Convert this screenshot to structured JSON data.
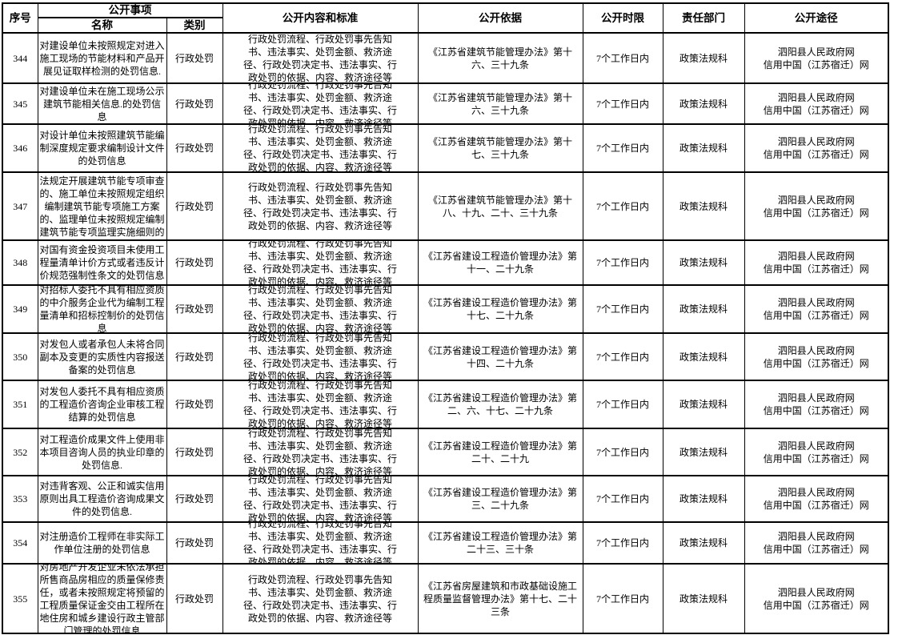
{
  "header": {
    "col_serial": "序号",
    "col_public_matter": "公开事项",
    "col_name": "名称",
    "col_category": "类别",
    "col_content": "公开内容和标准",
    "col_basis": "公开依据",
    "col_time_limit": "公开时限",
    "col_department": "责任部门",
    "col_channel": "公开途径"
  },
  "rows": [
    {
      "serial": "344",
      "name": "对建设单位未按照规定对进入施工现场的节能材料和产品开展见证取样检测的处罚信息.",
      "category": "行政处罚",
      "content": "行政处罚流程、行政处罚事先告知书、违法事实、处罚金额、救济途径、行政处罚决定书、违法事实、行政处罚的依据、内容、救济途径等",
      "basis": "《江苏省建筑节能管理办法》第十六、三十九条",
      "time_limit": "7个工作日内",
      "department": "政策法规科",
      "channel_line1": "泗阳县人民政府网",
      "channel_line2": "信用中国（江苏宿迁）网"
    },
    {
      "serial": "345",
      "name": "对建设单位未在施工现场公示建筑节能相关信息.的处罚信息",
      "category": "行政处罚",
      "content": "行政处罚流程、行政处罚事先告知书、违法事实、处罚金额、救济途径、行政处罚决定书、违法事实、行政处罚的依据、内容、救济途径等",
      "basis": "《江苏省建筑节能管理办法》第十六、三十九条",
      "time_limit": "7个工作日内",
      "department": "政策法规科",
      "channel_line1": "泗阳县人民政府网",
      "channel_line2": "信用中国（江苏宿迁）网"
    },
    {
      "serial": "346",
      "name": "对设计单位未按照建筑节能编制深度规定要求编制设计文件的处罚信息",
      "category": "行政处罚",
      "content": "行政处罚流程、行政处罚事先告知书、违法事实、处罚金额、救济途径、行政处罚决定书、违法事实、行政处罚的依据、内容、救济途径等",
      "basis": "《江苏省建筑节能管理办法》第十七、三十九条",
      "time_limit": "7个工作日内",
      "department": "政策法规科",
      "channel_line1": "泗阳县人民政府网",
      "channel_line2": "信用中国（江苏宿迁）网"
    },
    {
      "serial": "347",
      "name": "对施工图审查机构未按照本办法规定开展建筑节能专项审查的、施工单位未按照规定组织编制建筑节能专项施工方案的、监理单位未按照规定编制建筑节能专项监理实施细则的处罚信息",
      "category": "行政处罚",
      "content": "行政处罚流程、行政处罚事先告知书、违法事实、处罚金额、救济途径、行政处罚决定书、违法事实、行政处罚的依据、内容、救济途径等",
      "basis": "《江苏省建筑节能管理办法》第十八、十九、二十、三十九条",
      "time_limit": "7个工作日内",
      "department": "政策法规科",
      "channel_line1": "泗阳县人民政府网",
      "channel_line2": "信用中国（江苏宿迁）网"
    },
    {
      "serial": "348",
      "name": "对国有资金投资项目未使用工程量清单计价方式或者违反计价规范强制性条文的处罚信息",
      "category": "行政处罚",
      "content": "行政处罚流程、行政处罚事先告知书、违法事实、处罚金额、救济途径、行政处罚决定书、违法事实、行政处罚的依据、内容、救济途径等",
      "basis": "《江苏省建设工程造价管理办法》第十一、二十九条",
      "time_limit": "7个工作日内",
      "department": "政策法规科",
      "channel_line1": "泗阳县人民政府网",
      "channel_line2": "信用中国（江苏宿迁）网"
    },
    {
      "serial": "349",
      "name": "对招标人委托不具有相应资质的中介服务企业代为编制工程量清单和招标控制价的处罚信息",
      "category": "行政处罚",
      "content": "行政处罚流程、行政处罚事先告知书、违法事实、处罚金额、救济途径、行政处罚决定书、违法事实、行政处罚的依据、内容、救济途径等",
      "basis": "《江苏省建设工程造价管理办法》第十七、二十九条",
      "time_limit": "7个工作日内",
      "department": "政策法规科",
      "channel_line1": "泗阳县人民政府网",
      "channel_line2": "信用中国（江苏宿迁）网"
    },
    {
      "serial": "350",
      "name": "对发包人或者承包人未将合同副本及变更的实质性内容报送备案的处罚信息",
      "category": "行政处罚",
      "content": "行政处罚流程、行政处罚事先告知书、违法事实、处罚金额、救济途径、行政处罚决定书、违法事实、行政处罚的依据、内容、救济途径等",
      "basis": "《江苏省建设工程造价管理办法》第十四、二十九条",
      "time_limit": "7个工作日内",
      "department": "政策法规科",
      "channel_line1": "泗阳县人民政府网",
      "channel_line2": "信用中国（江苏宿迁）网"
    },
    {
      "serial": "351",
      "name": "对发包人委托不具有相应资质的工程造价咨询企业审核工程结算的处罚信息",
      "category": "行政处罚",
      "content": "行政处罚流程、行政处罚事先告知书、违法事实、处罚金额、救济途径、行政处罚决定书、违法事实、行政处罚的依据、内容、救济途径等",
      "basis": "《江苏省建设工程造价管理办法》第二、六、十七、二十九条",
      "time_limit": "7个工作日内",
      "department": "政策法规科",
      "channel_line1": "泗阳县人民政府网",
      "channel_line2": "信用中国（江苏宿迁）网"
    },
    {
      "serial": "352",
      "name": "对工程造价成果文件上使用非本项目咨询人员的执业印章的处罚信息.",
      "category": "行政处罚",
      "content": "行政处罚流程、行政处罚事先告知书、违法事实、处罚金额、救济途径、行政处罚决定书、违法事实、行政处罚的依据、内容、救济途径等",
      "basis": "《江苏省建设工程造价管理办法》第二十、二十九",
      "time_limit": "7个工作日内",
      "department": "政策法规科",
      "channel_line1": "泗阳县人民政府网",
      "channel_line2": "信用中国（江苏宿迁）网"
    },
    {
      "serial": "353",
      "name": "对违背客观、公正和诚实信用原则出具工程造价咨询成果文件的处罚信息.",
      "category": "行政处罚",
      "content": "行政处罚流程、行政处罚事先告知书、违法事实、处罚金额、救济途径、行政处罚决定书、违法事实、行政处罚的依据、内容、救济途径等",
      "basis": "《江苏省建设工程造价管理办法》第三、二十九条",
      "time_limit": "7个工作日内",
      "department": "政策法规科",
      "channel_line1": "泗阳县人民政府网",
      "channel_line2": "信用中国（江苏宿迁）网"
    },
    {
      "serial": "354",
      "name": "对注册造价工程师在非实际工作单位注册的处罚信息",
      "category": "行政处罚",
      "content": "行政处罚流程、行政处罚事先告知书、违法事实、处罚金额、救济途径、行政处罚决定书、违法事实、行政处罚的依据、内容、救济途径等",
      "basis": "《江苏省建设工程造价管理办法》第二十三、三十条",
      "time_limit": "7个工作日内",
      "department": "政策法规科",
      "channel_line1": "泗阳县人民政府网",
      "channel_line2": "信用中国（江苏宿迁）网"
    },
    {
      "serial": "355",
      "name": "对房地产开发企业未依法承担所售商品房相应的质量保修责任，或者未按照规定将预留的工程质量保证金交由工程所在地住房和城乡建设行政主管部门管理的处罚信息",
      "category": "行政处罚",
      "content": "行政处罚流程、行政处罚事先告知书、违法事实、处罚金额、救济途径、行政处罚决定书、违法事实、行政处罚的依据、内容、救济途径等",
      "basis": "《江苏省房屋建筑和市政基础设施工程质量监督管理办法》第十七、二十三条",
      "time_limit": "7个工作日内",
      "department": "政策法规科",
      "channel_line1": "泗阳县人民政府网",
      "channel_line2": "信用中国（江苏宿迁）网"
    }
  ]
}
